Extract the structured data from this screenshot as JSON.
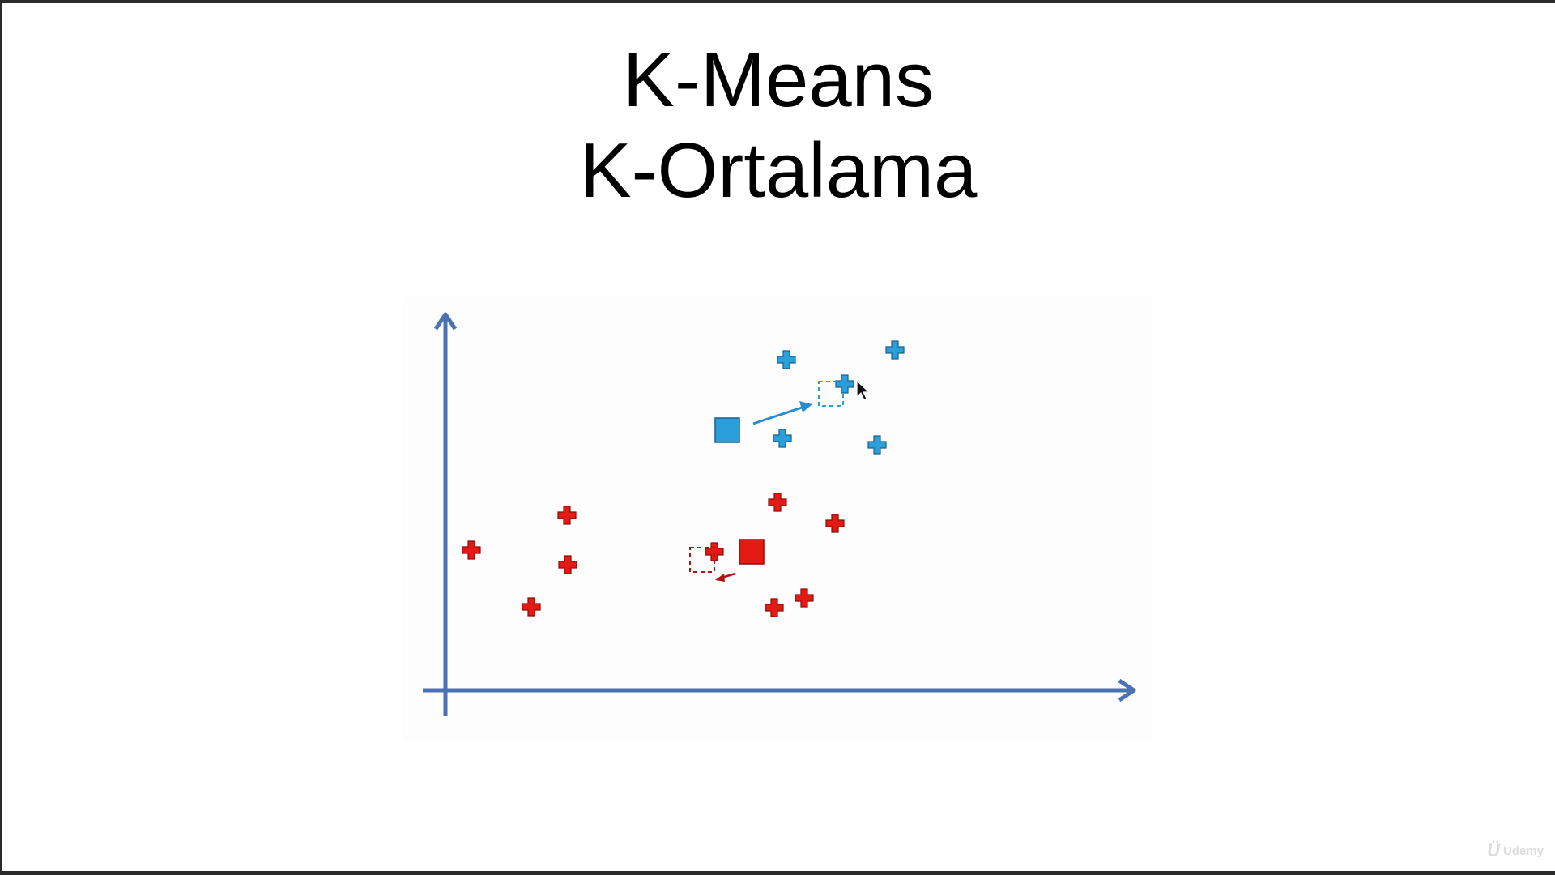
{
  "slide": {
    "title_line1": "K-Means",
    "title_line2": "K-Ortalama"
  },
  "watermark": {
    "text": "Udemy"
  },
  "colors": {
    "axis": "#4a72b0",
    "blue_cluster": "#2b9fd9",
    "red_cluster": "#e41a14",
    "red_outline": "#8c0e0b",
    "blue_outline": "#1b5f8f"
  },
  "icons": {
    "cursor": "mouse-pointer-icon"
  }
}
